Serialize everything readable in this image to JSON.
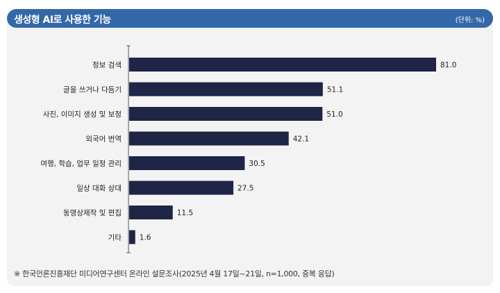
{
  "header": {
    "title": "생성형 AI로 사용한 기능",
    "unit": "(단위: %)"
  },
  "chart_data": {
    "type": "bar",
    "orientation": "horizontal",
    "title": "생성형 AI로 사용한 기능",
    "unit": "(단위: %)",
    "categories": [
      "정보 검색",
      "글을 쓰거나 다듬기",
      "사진, 이미지 생성 및 보정",
      "외국어 번역",
      "여행, 학습, 업무 일정 관리",
      "일상 대화 상대",
      "동영상제작 및 편집",
      "기타"
    ],
    "values": [
      81.0,
      51.1,
      51.0,
      42.1,
      30.5,
      27.5,
      11.5,
      1.6
    ],
    "xlim": [
      0,
      100
    ],
    "bar_color": "#1f2547",
    "grid": false
  },
  "footnote": "※ 한국언론진흥재단 미디어연구센터 온라인 설문조사(2025년 4월 17일~21일, n=1,000, 중복 응답)"
}
